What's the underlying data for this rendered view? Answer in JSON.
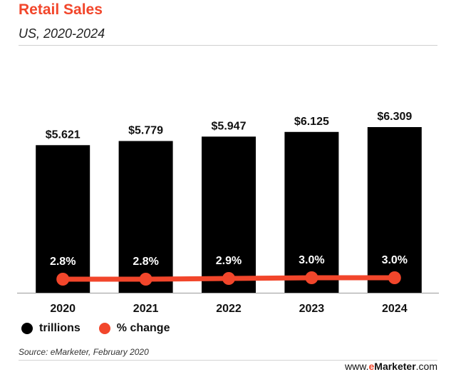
{
  "header": {
    "title": "Retail Sales",
    "subtitle": "US, 2020-2024"
  },
  "legend": {
    "bars_label": "trillions",
    "line_label": "% change"
  },
  "footer": {
    "source": "Source: eMarketer, February 2020",
    "brand_prefix": "www.",
    "brand_accent": "e",
    "brand_name": "Marketer",
    "brand_suffix": ".com"
  },
  "colors": {
    "accent": "#f2462b",
    "bars": "#000000",
    "line": "#f2462b"
  },
  "chart_data": {
    "type": "bar",
    "categories": [
      "2020",
      "2021",
      "2022",
      "2023",
      "2024"
    ],
    "series": [
      {
        "name": "trillions",
        "type": "bar",
        "values": [
          5.621,
          5.779,
          5.947,
          6.125,
          6.309
        ],
        "labels": [
          "$5.621",
          "$5.779",
          "$5.947",
          "$6.125",
          "$6.309"
        ]
      },
      {
        "name": "% change",
        "type": "line",
        "values": [
          2.8,
          2.8,
          2.9,
          3.0,
          3.0
        ],
        "labels": [
          "2.8%",
          "2.8%",
          "2.9%",
          "3.0%",
          "3.0%"
        ]
      }
    ],
    "title": "Retail Sales",
    "subtitle": "US, 2020-2024",
    "legend": "bottom-left",
    "grid": false
  }
}
